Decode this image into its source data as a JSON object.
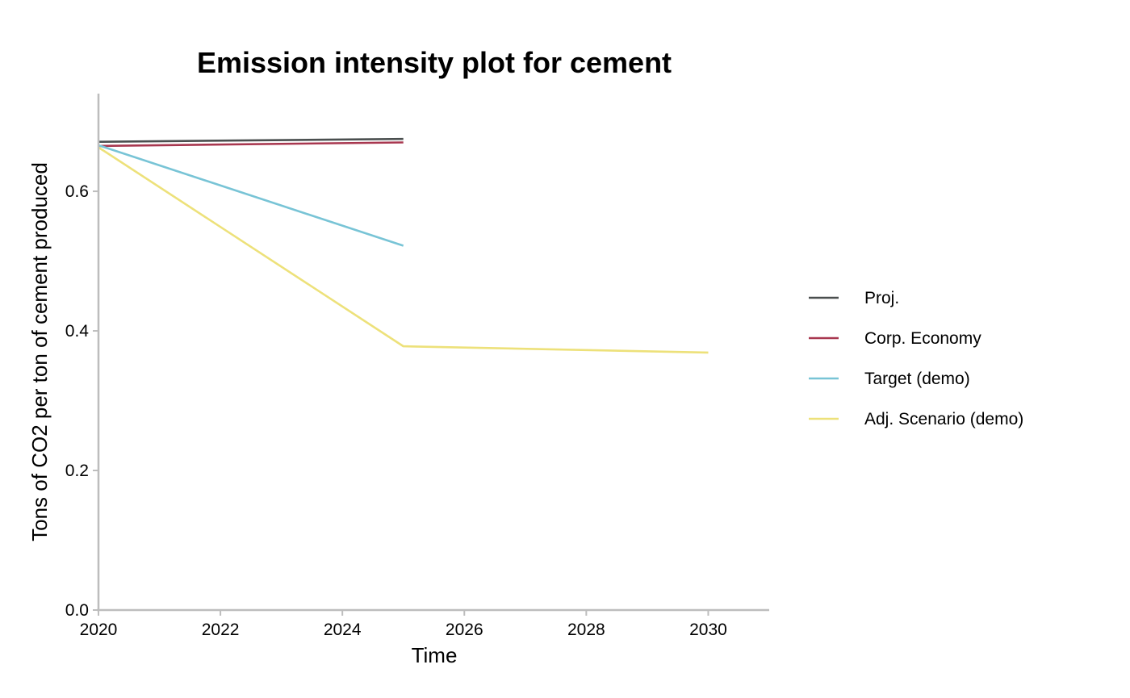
{
  "chart_data": {
    "type": "line",
    "title": "Emission intensity plot for cement",
    "xlabel": "Time",
    "ylabel": "Tons of CO2 per ton of cement produced",
    "xlim": [
      2020,
      2031
    ],
    "ylim": [
      0,
      0.74
    ],
    "x_ticks": [
      2020,
      2022,
      2024,
      2026,
      2028,
      2030
    ],
    "y_ticks": [
      0.0,
      0.2,
      0.4,
      0.6
    ],
    "y_tick_labels": [
      "0.0",
      "0.2",
      "0.4",
      "0.6"
    ],
    "grid": false,
    "legend_position": "right",
    "series": [
      {
        "name": "Proj.",
        "color": "#4a4f4f",
        "x": [
          2020,
          2025
        ],
        "y": [
          0.671,
          0.675
        ]
      },
      {
        "name": "Corp. Economy",
        "color": "#a8374f",
        "x": [
          2020,
          2025
        ],
        "y": [
          0.665,
          0.67
        ]
      },
      {
        "name": "Target (demo)",
        "color": "#78c4d6",
        "x": [
          2020,
          2025
        ],
        "y": [
          0.666,
          0.522
        ]
      },
      {
        "name": "Adj. Scenario (demo)",
        "color": "#ede17a",
        "x": [
          2020,
          2025,
          2030
        ],
        "y": [
          0.663,
          0.378,
          0.369
        ]
      }
    ]
  }
}
